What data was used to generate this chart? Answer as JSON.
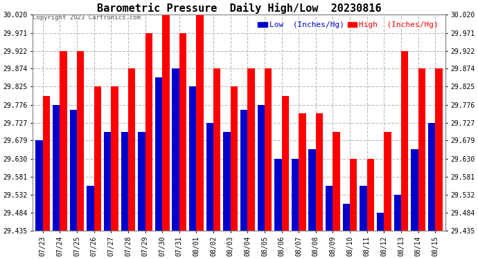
{
  "title": "Barometric Pressure  Daily High/Low  20230816",
  "copyright": "Copyright 2023 Cartronics.com",
  "legend_low": "Low  (Inches/Hg)",
  "legend_high": "High  (Inches/Hg)",
  "background_color": "#ffffff",
  "grid_color": "#bbbbbb",
  "dates": [
    "07/23",
    "07/24",
    "07/25",
    "07/26",
    "07/27",
    "07/28",
    "07/29",
    "07/30",
    "07/31",
    "08/01",
    "08/02",
    "08/03",
    "08/04",
    "08/05",
    "08/06",
    "08/07",
    "08/08",
    "08/09",
    "08/10",
    "08/11",
    "08/12",
    "08/13",
    "08/14",
    "08/15"
  ],
  "high_values": [
    29.8,
    29.922,
    29.922,
    29.825,
    29.825,
    29.874,
    29.971,
    30.02,
    29.971,
    30.02,
    29.874,
    29.825,
    29.874,
    29.874,
    29.8,
    29.752,
    29.752,
    29.703,
    29.63,
    29.63,
    29.703,
    29.922,
    29.874,
    29.874
  ],
  "low_values": [
    29.679,
    29.776,
    29.762,
    29.557,
    29.703,
    29.703,
    29.703,
    29.85,
    29.874,
    29.825,
    29.727,
    29.703,
    29.762,
    29.776,
    29.63,
    29.63,
    29.655,
    29.557,
    29.508,
    29.557,
    29.484,
    29.532,
    29.655,
    29.727
  ],
  "ylim_min": 29.435,
  "ylim_max": 30.02,
  "yticks": [
    29.435,
    29.484,
    29.532,
    29.581,
    29.63,
    29.679,
    29.727,
    29.776,
    29.825,
    29.874,
    29.922,
    29.971,
    30.02
  ],
  "bar_width": 0.42,
  "high_color": "#ff0000",
  "low_color": "#0000cc",
  "title_fontsize": 11,
  "tick_fontsize": 7,
  "legend_fontsize": 8,
  "copyright_fontsize": 6.5
}
